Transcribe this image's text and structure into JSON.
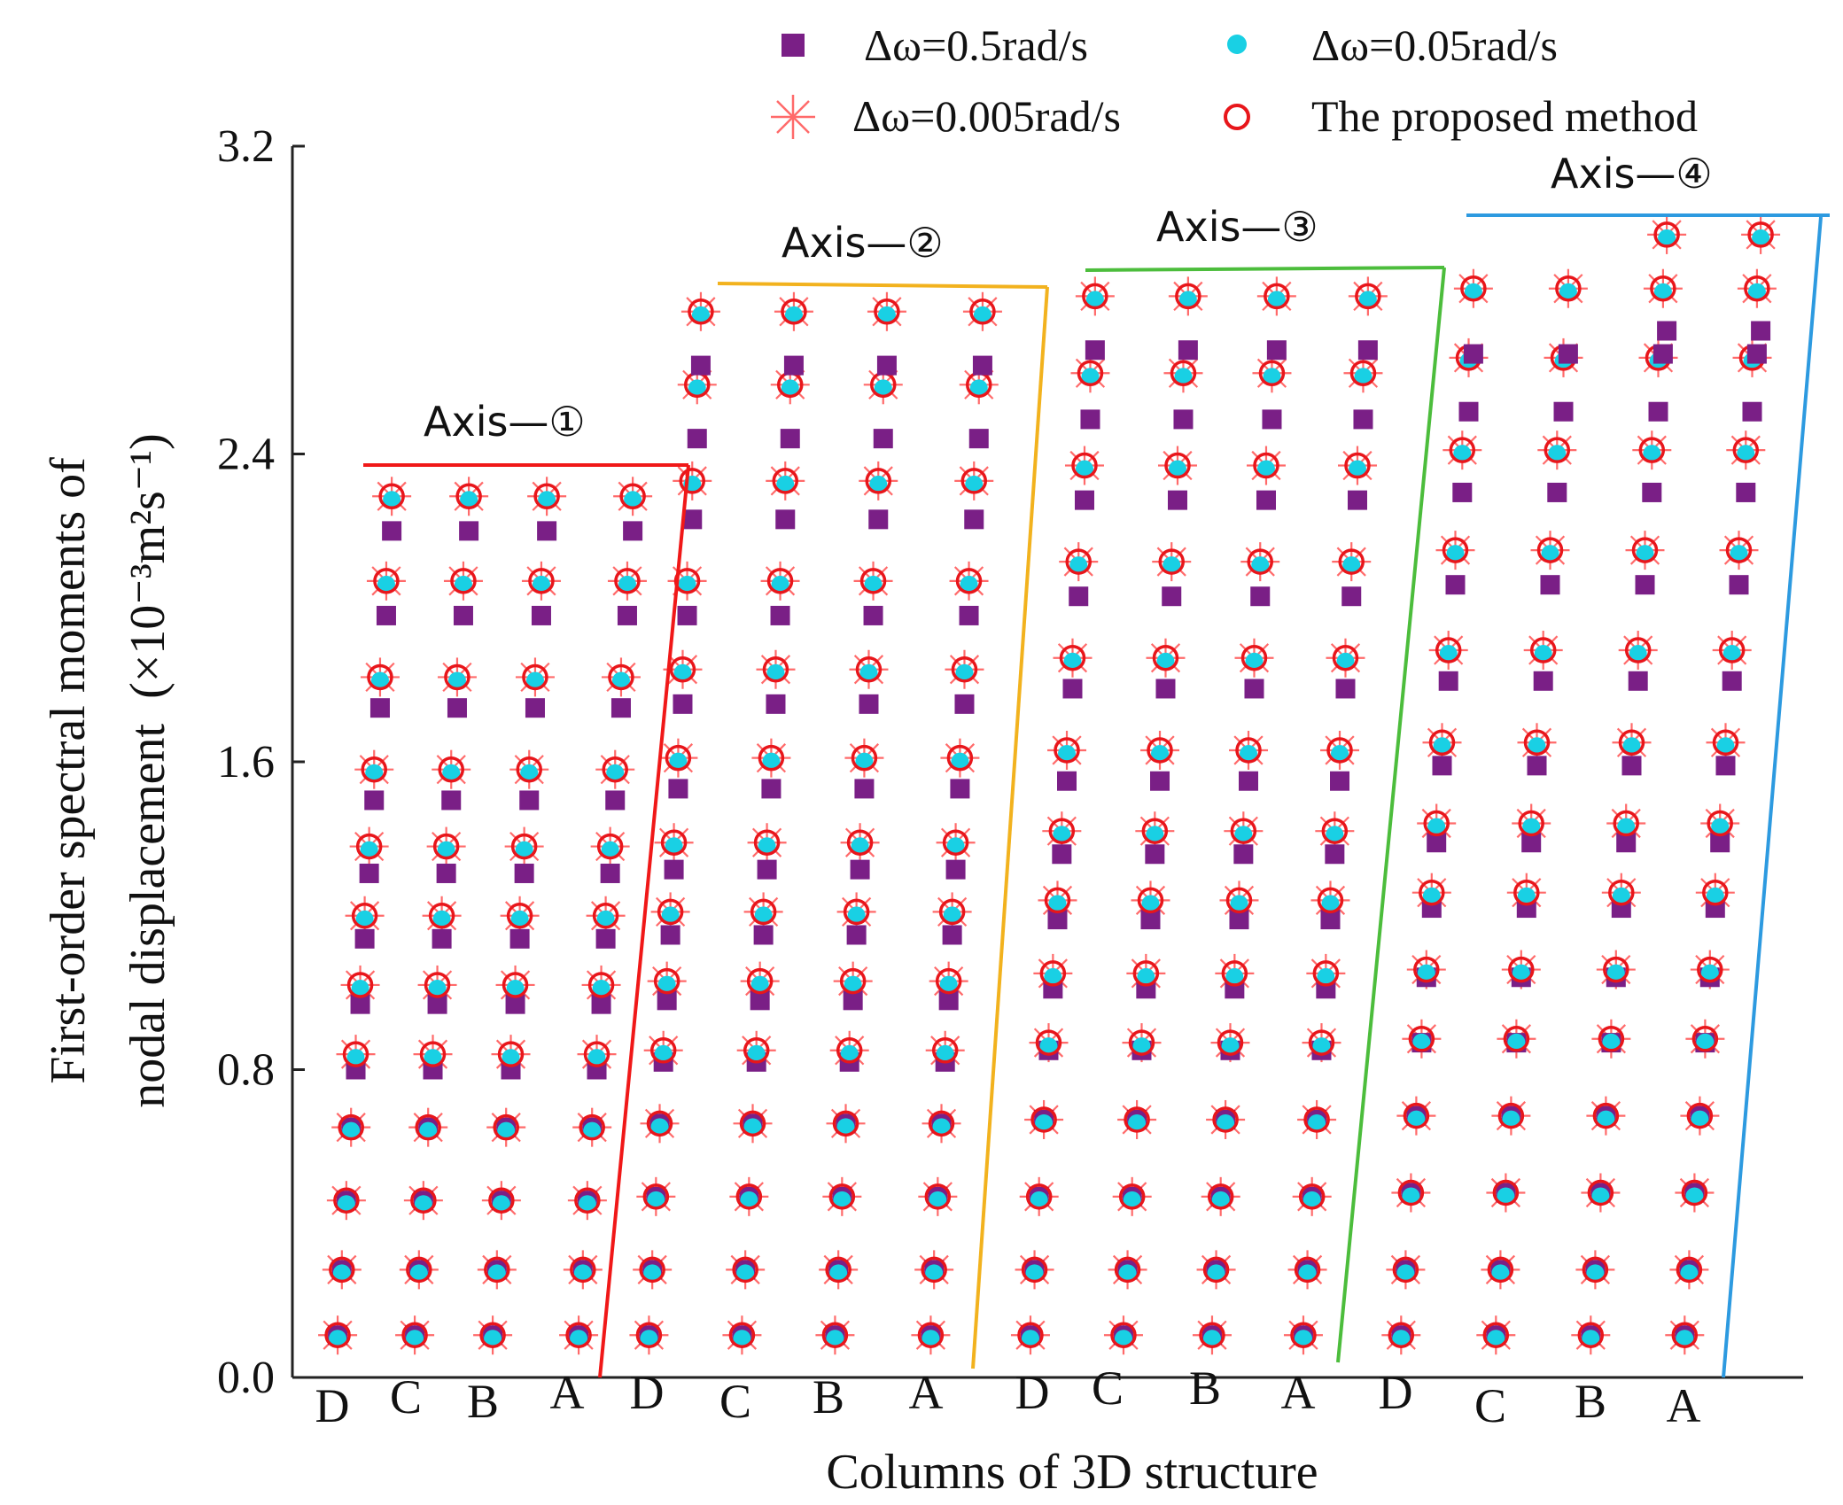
{
  "chart_data": {
    "type": "scatter",
    "title": "",
    "ylabel_line1": "First-order spectral moments of",
    "ylabel_line2_prefix": "nodal displacement",
    "ylabel_units": "(×10⁻³m²s⁻¹)",
    "xlabel": "Columns of  3D structure",
    "ylim": [
      0,
      3.2
    ],
    "yticks": [
      "0.0",
      "0.8",
      "1.6",
      "2.4",
      "3.2"
    ],
    "ytick_values": [
      0,
      0.8,
      1.6,
      2.4,
      3.2
    ],
    "column_labels": [
      "D",
      "C",
      "B",
      "A",
      "D",
      "C",
      "B",
      "A",
      "D",
      "C",
      "B",
      "A",
      "D",
      "C",
      "B",
      "A"
    ],
    "colors": {
      "coarse": "#7a1f86",
      "medium": "#19d0e4",
      "fine": "#ff6a6a",
      "proposed": "#e8161b",
      "axis1": "#f01818",
      "axis2": "#f2b21e",
      "axis3": "#4cbd3c",
      "axis4": "#2d9ae0"
    },
    "legend": [
      {
        "name": "Δω=0.5rad/s",
        "marker": "square"
      },
      {
        "name": "Δω=0.05rad/s",
        "marker": "dot"
      },
      {
        "name": "Δω=0.005rad/s",
        "marker": "asterisk"
      },
      {
        "name": "The proposed method",
        "marker": "circle"
      }
    ],
    "axes": [
      {
        "label": "Axis—①",
        "columns": [
          "D",
          "C",
          "B",
          "A"
        ],
        "levels": [
          0.11,
          0.28,
          0.46,
          0.65,
          0.84,
          1.02,
          1.2,
          1.38,
          1.58,
          1.82,
          2.07,
          2.29
        ],
        "coarse_offsets": [
          0,
          0,
          0,
          0,
          -0.04,
          -0.05,
          -0.06,
          -0.07,
          -0.08,
          -0.08,
          -0.09,
          -0.09
        ]
      },
      {
        "label": "Axis—②",
        "columns": [
          "D",
          "C",
          "B",
          "A"
        ],
        "levels": [
          0.11,
          0.28,
          0.47,
          0.66,
          0.85,
          1.03,
          1.21,
          1.39,
          1.61,
          1.84,
          2.07,
          2.33,
          2.58,
          2.77
        ],
        "coarse_offsets": [
          0,
          0,
          0,
          0,
          -0.03,
          -0.05,
          -0.06,
          -0.07,
          -0.08,
          -0.09,
          -0.09,
          -0.1,
          -0.14,
          -0.14
        ]
      },
      {
        "label": "Axis—③",
        "columns": [
          "D",
          "C",
          "B",
          "A"
        ],
        "levels": [
          0.11,
          0.28,
          0.47,
          0.67,
          0.87,
          1.05,
          1.24,
          1.42,
          1.63,
          1.87,
          2.12,
          2.37,
          2.61,
          2.81
        ],
        "coarse_offsets": [
          0,
          0,
          0,
          0,
          -0.02,
          -0.04,
          -0.05,
          -0.06,
          -0.08,
          -0.08,
          -0.09,
          -0.09,
          -0.12,
          -0.14
        ]
      },
      {
        "label": "Axis—④",
        "columns": [
          "D",
          "C",
          "B",
          "A"
        ],
        "levels": [
          0.11,
          0.28,
          0.48,
          0.68,
          0.88,
          1.06,
          1.26,
          1.44,
          1.65,
          1.89,
          2.15,
          2.41,
          2.65,
          2.83,
          2.97
        ],
        "coarse_offsets": [
          0,
          0,
          0,
          0,
          -0.01,
          -0.02,
          -0.04,
          -0.05,
          -0.06,
          -0.08,
          -0.09,
          -0.11,
          -0.14,
          -0.17,
          -0.25
        ],
        "top_only_A_B": true
      }
    ]
  }
}
